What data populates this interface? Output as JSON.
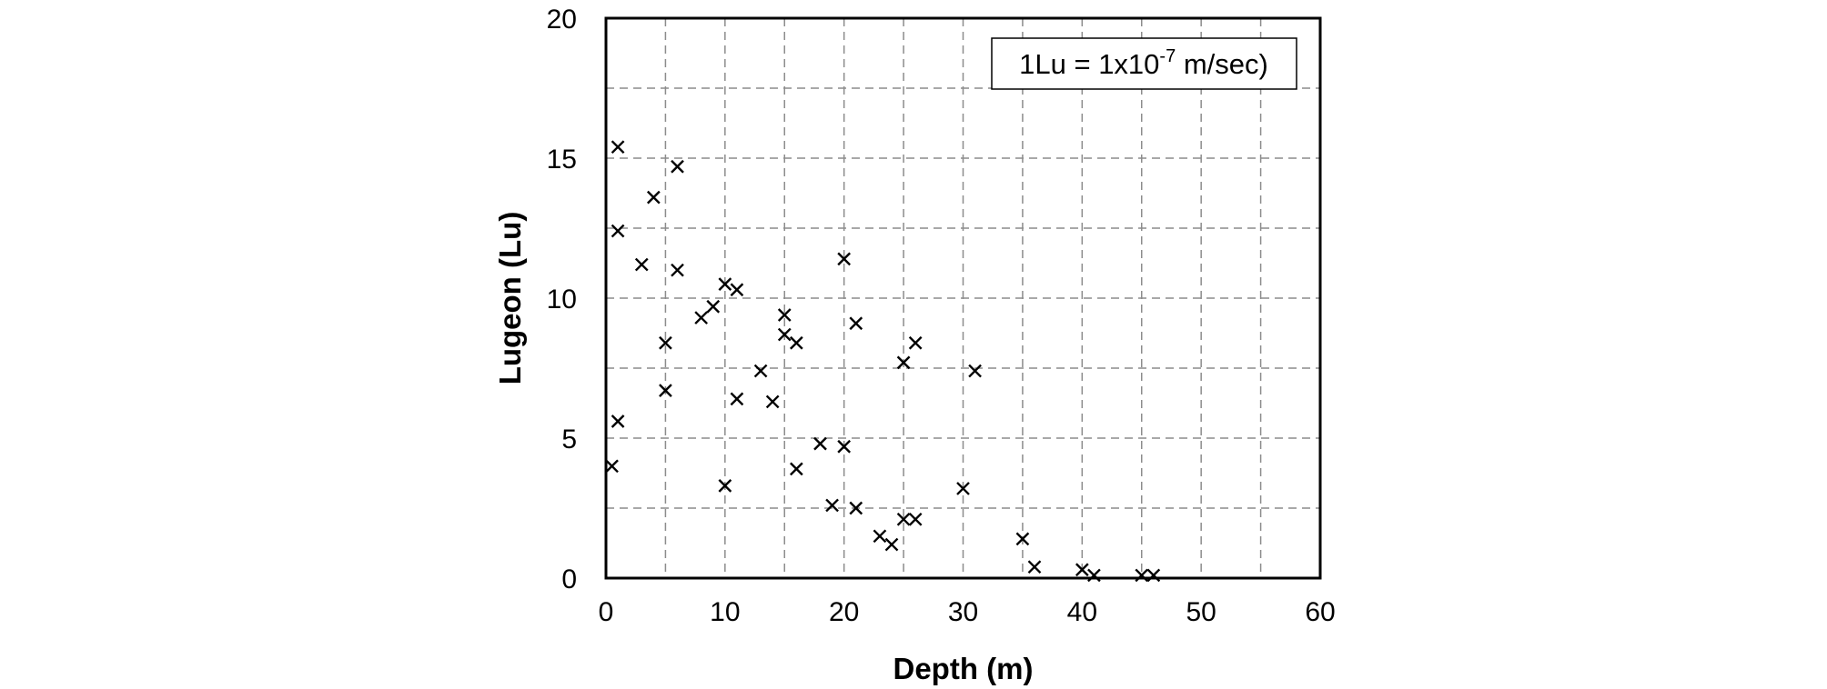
{
  "chart_data": {
    "type": "scatter",
    "title": "",
    "xlabel": "Depth (m)",
    "ylabel": "Lugeon (Lu)",
    "xlim": [
      0,
      60
    ],
    "ylim": [
      0,
      20
    ],
    "xticks": [
      0,
      10,
      20,
      30,
      40,
      50,
      60
    ],
    "yticks": [
      0,
      5,
      10,
      15,
      20
    ],
    "grid": true,
    "marker": "x",
    "annotation": {
      "prefix": "1Lu = 1x10",
      "superscript": "-7",
      "suffix": " m/sec)",
      "placement": "top-right"
    },
    "series": [
      {
        "points": [
          [
            0.5,
            4.0
          ],
          [
            1.0,
            5.6
          ],
          [
            1.0,
            12.4
          ],
          [
            1.0,
            15.4
          ],
          [
            3.0,
            11.2
          ],
          [
            4.0,
            13.6
          ],
          [
            5.0,
            8.4
          ],
          [
            5.0,
            6.7
          ],
          [
            6.0,
            11.0
          ],
          [
            6.0,
            14.7
          ],
          [
            8.0,
            9.3
          ],
          [
            9.0,
            9.7
          ],
          [
            10.0,
            10.5
          ],
          [
            10.0,
            3.3
          ],
          [
            11.0,
            10.3
          ],
          [
            11.0,
            6.4
          ],
          [
            13.0,
            7.4
          ],
          [
            14.0,
            6.3
          ],
          [
            15.0,
            9.4
          ],
          [
            15.0,
            8.7
          ],
          [
            16.0,
            8.4
          ],
          [
            16.0,
            3.9
          ],
          [
            18.0,
            4.8
          ],
          [
            19.0,
            2.6
          ],
          [
            20.0,
            11.4
          ],
          [
            20.0,
            4.7
          ],
          [
            21.0,
            9.1
          ],
          [
            21.0,
            2.5
          ],
          [
            23.0,
            1.5
          ],
          [
            24.0,
            1.2
          ],
          [
            25.0,
            7.7
          ],
          [
            25.0,
            2.1
          ],
          [
            26.0,
            8.4
          ],
          [
            26.0,
            2.1
          ],
          [
            30.0,
            3.2
          ],
          [
            31.0,
            7.4
          ],
          [
            35.0,
            1.4
          ],
          [
            36.0,
            0.4
          ],
          [
            40.0,
            0.3
          ],
          [
            41.0,
            0.1
          ],
          [
            45.0,
            0.1
          ],
          [
            46.0,
            0.1
          ]
        ]
      }
    ]
  }
}
